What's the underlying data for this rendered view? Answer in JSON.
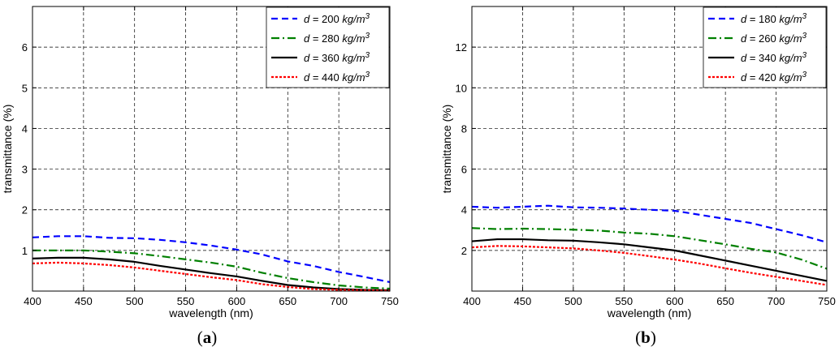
{
  "chart_data": [
    {
      "type": "line",
      "panel_label": "(a)",
      "xlabel": "wavelength (nm)",
      "ylabel": "transmittance (%)",
      "xlim": [
        400,
        750
      ],
      "ylim": [
        0,
        7
      ],
      "xticks": [
        400,
        450,
        500,
        550,
        600,
        650,
        700,
        750
      ],
      "yticks": [
        1,
        2,
        3,
        4,
        5,
        6
      ],
      "grid": true,
      "legend_position": "top-right",
      "x": [
        400,
        425,
        450,
        475,
        500,
        525,
        550,
        575,
        600,
        625,
        650,
        675,
        700,
        725,
        750
      ],
      "series": [
        {
          "name": "d = 200 kg/m3",
          "legend_prefix": "d = 200 kg/m",
          "legend_sup": "3",
          "color": "#0000ff",
          "dash": "8,5",
          "values": [
            1.32,
            1.35,
            1.35,
            1.31,
            1.3,
            1.26,
            1.2,
            1.12,
            1.02,
            0.9,
            0.73,
            0.62,
            0.47,
            0.35,
            0.22
          ]
        },
        {
          "name": "d = 280 kg/m3",
          "legend_prefix": "d = 280 kg/m",
          "legend_sup": "3",
          "color": "#008000",
          "dash": "10,4,2,4",
          "values": [
            1.0,
            1.0,
            1.0,
            0.97,
            0.93,
            0.86,
            0.78,
            0.7,
            0.6,
            0.45,
            0.32,
            0.22,
            0.14,
            0.09,
            0.06
          ]
        },
        {
          "name": "d = 360 kg/m3",
          "legend_prefix": "d = 360 kg/m",
          "legend_sup": "3",
          "color": "#000000",
          "dash": "",
          "values": [
            0.8,
            0.82,
            0.82,
            0.78,
            0.72,
            0.62,
            0.53,
            0.44,
            0.36,
            0.25,
            0.15,
            0.09,
            0.05,
            0.03,
            0.02
          ]
        },
        {
          "name": "d = 440 kg/m3",
          "legend_prefix": "d = 440 kg/m",
          "legend_sup": "3",
          "color": "#ff0000",
          "dash": "3,2",
          "values": [
            0.68,
            0.7,
            0.68,
            0.64,
            0.58,
            0.5,
            0.42,
            0.34,
            0.27,
            0.17,
            0.1,
            0.05,
            0.03,
            0.02,
            0.01
          ]
        }
      ]
    },
    {
      "type": "line",
      "panel_label": "(b)",
      "xlabel": "wavelength (nm)",
      "ylabel": "transmittance (%)",
      "xlim": [
        400,
        750
      ],
      "ylim": [
        0,
        14
      ],
      "xticks": [
        400,
        450,
        500,
        550,
        600,
        650,
        700,
        750
      ],
      "yticks": [
        2,
        4,
        6,
        8,
        10,
        12
      ],
      "grid": true,
      "legend_position": "top-right",
      "x": [
        400,
        425,
        450,
        475,
        500,
        525,
        550,
        575,
        600,
        625,
        650,
        675,
        700,
        725,
        750
      ],
      "series": [
        {
          "name": "d = 180 kg/m3",
          "legend_prefix": "d = 180 kg/m",
          "legend_sup": "3",
          "color": "#0000ff",
          "dash": "8,5",
          "values": [
            4.15,
            4.1,
            4.15,
            4.2,
            4.12,
            4.1,
            4.06,
            4.0,
            3.95,
            3.75,
            3.55,
            3.35,
            3.05,
            2.75,
            2.4
          ]
        },
        {
          "name": "d = 260 kg/m3",
          "legend_prefix": "d = 260 kg/m",
          "legend_sup": "3",
          "color": "#008000",
          "dash": "10,4,2,4",
          "values": [
            3.1,
            3.05,
            3.07,
            3.05,
            3.02,
            2.98,
            2.88,
            2.82,
            2.7,
            2.5,
            2.3,
            2.08,
            1.9,
            1.55,
            1.1
          ]
        },
        {
          "name": "d = 340 kg/m3",
          "legend_prefix": "d = 340 kg/m",
          "legend_sup": "3",
          "color": "#000000",
          "dash": "",
          "values": [
            2.45,
            2.55,
            2.55,
            2.5,
            2.48,
            2.4,
            2.3,
            2.15,
            2.0,
            1.75,
            1.5,
            1.25,
            1.0,
            0.75,
            0.5
          ]
        },
        {
          "name": "d = 420 kg/m3",
          "legend_prefix": "d = 420 kg/m",
          "legend_sup": "3",
          "color": "#ff0000",
          "dash": "3,2",
          "values": [
            2.15,
            2.22,
            2.2,
            2.15,
            2.1,
            2.0,
            1.88,
            1.72,
            1.55,
            1.35,
            1.12,
            0.9,
            0.7,
            0.5,
            0.3
          ]
        }
      ]
    }
  ]
}
